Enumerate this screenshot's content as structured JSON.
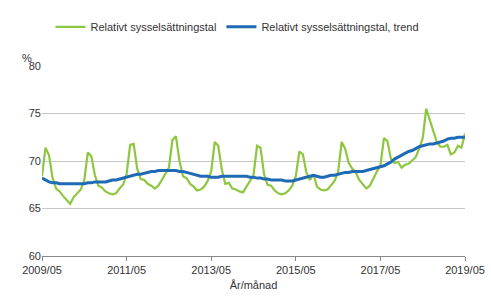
{
  "chart_data": {
    "type": "line",
    "y_label": "%",
    "x_label": "År/månad",
    "categories": [
      "2009/05",
      null,
      null,
      null,
      null,
      null,
      null,
      null,
      null,
      null,
      null,
      null,
      null,
      null,
      null,
      null,
      null,
      null,
      null,
      null,
      null,
      null,
      null,
      null,
      "2011/05",
      null,
      null,
      null,
      null,
      null,
      null,
      null,
      null,
      null,
      null,
      null,
      null,
      null,
      null,
      null,
      null,
      null,
      null,
      null,
      null,
      null,
      null,
      null,
      "2013/05",
      null,
      null,
      null,
      null,
      null,
      null,
      null,
      null,
      null,
      null,
      null,
      null,
      null,
      null,
      null,
      null,
      null,
      null,
      null,
      null,
      null,
      null,
      null,
      "2015/05",
      null,
      null,
      null,
      null,
      null,
      null,
      null,
      null,
      null,
      null,
      null,
      null,
      null,
      null,
      null,
      null,
      null,
      null,
      null,
      null,
      null,
      null,
      null,
      "2017/05",
      null,
      null,
      null,
      null,
      null,
      null,
      null,
      null,
      null,
      null,
      null,
      null,
      null,
      null,
      null,
      null,
      null,
      null,
      null,
      null,
      null,
      null,
      null,
      "2019/05"
    ],
    "series": [
      {
        "name": "Relativt sysselsättningstal",
        "color": "#8dc63f",
        "values": [
          68.4,
          71.4,
          70.6,
          68.2,
          67.1,
          66.8,
          66.3,
          65.9,
          65.5,
          66.2,
          66.6,
          67.0,
          68.0,
          70.9,
          70.5,
          68.5,
          67.4,
          67.2,
          66.8,
          66.6,
          66.5,
          66.6,
          67.1,
          67.5,
          68.6,
          71.7,
          71.8,
          69.2,
          68.1,
          68.0,
          67.6,
          67.4,
          67.1,
          67.4,
          68.0,
          68.6,
          69.3,
          72.2,
          72.6,
          70.0,
          68.4,
          68.2,
          67.6,
          67.3,
          66.9,
          67.0,
          67.3,
          67.9,
          68.9,
          72.0,
          71.6,
          69.1,
          67.6,
          67.7,
          67.1,
          67.0,
          66.8,
          66.7,
          67.3,
          67.8,
          68.5,
          71.6,
          71.4,
          68.6,
          67.5,
          67.4,
          66.9,
          66.6,
          66.5,
          66.6,
          66.9,
          67.4,
          68.4,
          71.0,
          70.7,
          68.8,
          68.0,
          68.6,
          67.3,
          67.0,
          66.9,
          67.0,
          67.5,
          67.9,
          68.8,
          72.0,
          71.3,
          69.8,
          69.2,
          68.8,
          68.0,
          67.6,
          67.1,
          67.4,
          68.2,
          68.9,
          69.5,
          72.4,
          72.1,
          70.2,
          69.8,
          69.9,
          69.3,
          69.6,
          69.7,
          70.1,
          70.4,
          71.3,
          72.4,
          75.5,
          74.3,
          73.0,
          72.0,
          71.5,
          71.5,
          71.7,
          70.7,
          70.9,
          71.6,
          71.4,
          72.9
        ]
      },
      {
        "name": "Relativt sysselsättningstal, trend",
        "color": "#1f6ab4",
        "values": [
          68.2,
          68.0,
          67.8,
          67.7,
          67.7,
          67.6,
          67.6,
          67.6,
          67.6,
          67.6,
          67.6,
          67.6,
          67.6,
          67.7,
          67.7,
          67.8,
          67.8,
          67.8,
          67.8,
          67.9,
          68.0,
          68.0,
          68.1,
          68.2,
          68.3,
          68.4,
          68.5,
          68.6,
          68.6,
          68.7,
          68.8,
          68.9,
          68.9,
          69.0,
          69.0,
          69.0,
          69.0,
          69.0,
          69.0,
          68.9,
          68.9,
          68.8,
          68.7,
          68.6,
          68.5,
          68.4,
          68.4,
          68.4,
          68.3,
          68.3,
          68.3,
          68.4,
          68.4,
          68.4,
          68.4,
          68.4,
          68.4,
          68.4,
          68.4,
          68.3,
          68.3,
          68.2,
          68.2,
          68.1,
          68.1,
          68.0,
          68.0,
          68.0,
          68.0,
          67.9,
          67.9,
          67.9,
          68.0,
          68.1,
          68.2,
          68.3,
          68.4,
          68.5,
          68.4,
          68.3,
          68.3,
          68.4,
          68.5,
          68.5,
          68.6,
          68.7,
          68.8,
          68.8,
          68.9,
          68.9,
          68.9,
          68.9,
          69.0,
          69.1,
          69.2,
          69.3,
          69.4,
          69.5,
          69.7,
          69.9,
          70.2,
          70.4,
          70.6,
          70.8,
          71.0,
          71.1,
          71.3,
          71.5,
          71.6,
          71.7,
          71.8,
          71.8,
          71.9,
          72.0,
          72.1,
          72.3,
          72.4,
          72.4,
          72.5,
          72.5,
          72.5
        ]
      }
    ],
    "ylim": [
      60,
      80
    ],
    "yticks": [
      60,
      65,
      70,
      75,
      80
    ],
    "grid": true,
    "legend": "top"
  }
}
